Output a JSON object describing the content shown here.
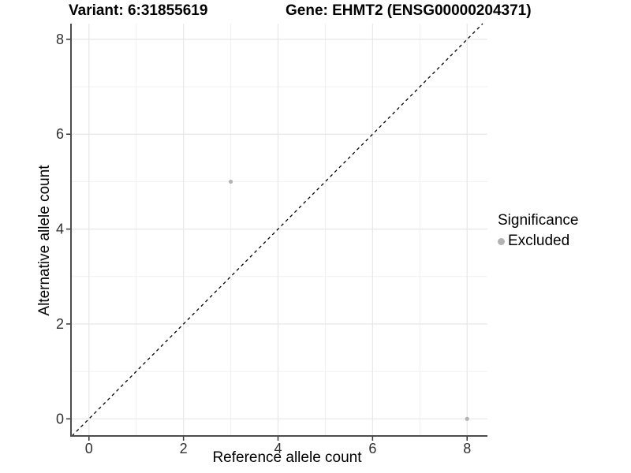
{
  "chart_data": {
    "type": "scatter",
    "title_left": "Variant: 6:31855619",
    "title_right": "Gene: EHMT2 (ENSG00000204371)",
    "xlabel": "Reference allele count",
    "ylabel": "Alternative allele count",
    "xlim": [
      -0.38,
      8.43
    ],
    "ylim": [
      -0.36,
      8.33
    ],
    "x_ticks": [
      0,
      2,
      4,
      6,
      8
    ],
    "y_ticks": [
      0,
      2,
      4,
      6,
      8
    ],
    "x_minor_ticks": [
      1,
      3,
      5,
      7
    ],
    "y_minor_ticks": [
      1,
      3,
      5,
      7
    ],
    "grid": "on",
    "identity_line": {
      "style": "dashed",
      "slope": 1,
      "intercept": 0,
      "color": "#000000"
    },
    "series": [
      {
        "name": "Excluded",
        "color": "#b3b3b3",
        "points": [
          {
            "x": 3,
            "y": 5
          },
          {
            "x": 8,
            "y": 0
          }
        ]
      }
    ],
    "legend": {
      "title": "Significance",
      "position": "right",
      "items": [
        {
          "label": "Excluded",
          "color": "#b3b3b3"
        }
      ]
    },
    "colors": {
      "background": "#ffffff",
      "axis_line": "#4d4d4d",
      "tick_mark": "#333333",
      "tick_label": "#303030",
      "grid_major": "#e7e7e7",
      "grid_minor": "#f0f0f0"
    }
  }
}
